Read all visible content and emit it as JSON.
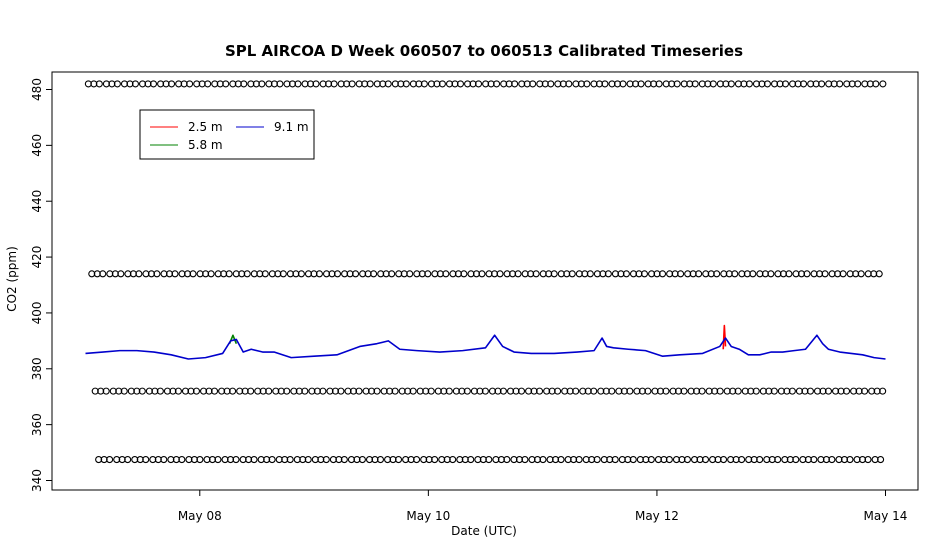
{
  "chart_data": {
    "type": "line",
    "title": "SPL AIRCOA D  Week 060507 to 060513  Calibrated Timeseries",
    "xlabel": "Date (UTC)",
    "ylabel": "CO2 (ppm)",
    "xlim": [
      7.0,
      14.0
    ],
    "ylim": [
      337,
      485
    ],
    "x_ticks": [
      {
        "value": 8,
        "label": "May 08"
      },
      {
        "value": 10,
        "label": "May 10"
      },
      {
        "value": 12,
        "label": "May 12"
      },
      {
        "value": 14,
        "label": "May 14"
      }
    ],
    "y_ticks": [
      340,
      360,
      380,
      400,
      420,
      440,
      460,
      480
    ],
    "grid": false,
    "legend": {
      "placement": "top-left",
      "entries": [
        {
          "name": "2.5 m",
          "color": "#ff0000"
        },
        {
          "name": "5.8 m",
          "color": "#008000"
        },
        {
          "name": "9.1 m",
          "color": "#0000cc"
        }
      ]
    },
    "series": [
      {
        "name": "9.1 m",
        "color": "#0000cc",
        "x": [
          7.0,
          7.15,
          7.3,
          7.45,
          7.6,
          7.75,
          7.9,
          8.05,
          8.2,
          8.27,
          8.32,
          8.38,
          8.45,
          8.55,
          8.65,
          8.8,
          9.0,
          9.2,
          9.4,
          9.55,
          9.65,
          9.75,
          9.9,
          10.1,
          10.3,
          10.5,
          10.58,
          10.65,
          10.75,
          10.9,
          11.1,
          11.3,
          11.45,
          11.52,
          11.56,
          11.62,
          11.75,
          11.9,
          12.05,
          12.2,
          12.4,
          12.55,
          12.6,
          12.65,
          12.72,
          12.8,
          12.9,
          13.0,
          13.1,
          13.2,
          13.3,
          13.4,
          13.45,
          13.5,
          13.6,
          13.7,
          13.8,
          13.9,
          14.0
        ],
        "values": [
          385.5,
          386,
          386.5,
          386.5,
          386,
          385,
          383.5,
          384,
          385.5,
          390,
          390.5,
          386,
          387,
          386,
          386,
          384,
          384.5,
          385,
          388,
          389,
          390,
          387,
          386.5,
          386,
          386.5,
          387.5,
          392,
          388,
          386,
          385.5,
          385.5,
          386,
          386.5,
          391,
          388,
          387.5,
          387,
          386.5,
          384.5,
          385,
          385.5,
          388,
          391,
          388,
          387,
          385,
          385,
          386,
          386,
          386.5,
          387,
          392,
          389,
          387,
          386,
          385.5,
          385,
          384,
          383.5
        ]
      },
      {
        "name": "2.5 m",
        "color": "#ff0000",
        "x": [
          12.58,
          12.59,
          12.6
        ],
        "values": [
          387,
          395.5,
          388
        ]
      },
      {
        "name": "5.8 m",
        "color": "#008000",
        "x": [
          8.26,
          8.29,
          8.32
        ],
        "values": [
          389,
          392,
          389
        ]
      }
    ],
    "calibration_markers": {
      "symbol": "o",
      "levels": [
        482,
        414,
        372,
        347.5
      ]
    }
  }
}
